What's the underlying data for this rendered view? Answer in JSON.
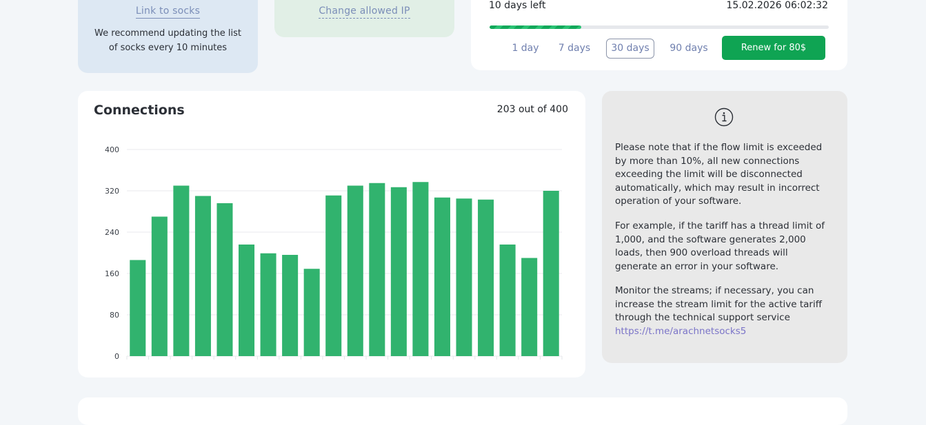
{
  "socks": {
    "link_label": "Link to socks",
    "note": "We recommend updating the list of socks every 10 minutes"
  },
  "ip": {
    "change_label": "Change allowed IP"
  },
  "subscription": {
    "days_left": "10 days left",
    "expires": "15.02.2026 06:02:32",
    "remaining_fraction": 0.27,
    "periods": [
      "1 day",
      "7 days",
      "30 days",
      "90 days"
    ],
    "selected_period": "30 days",
    "renew_label": "Renew for 80$"
  },
  "connections": {
    "title": "Connections",
    "count": "203 out of 400"
  },
  "chart_data": {
    "type": "bar",
    "title": "",
    "xlabel": "",
    "ylabel": "",
    "ylim": [
      0,
      400
    ],
    "yticks": [
      0,
      80,
      160,
      240,
      320,
      400
    ],
    "grid": true,
    "color": "#31b36e",
    "values": [
      186,
      270,
      330,
      310,
      296,
      216,
      199,
      196,
      169,
      311,
      330,
      335,
      327,
      337,
      307,
      305,
      303,
      216,
      190,
      320
    ]
  },
  "info": {
    "paragraph1": "Please note that if the flow limit is exceeded by more than 10%, all new connections exceeding the limit will be disconnected automatically, which may result in incorrect operation of your software.",
    "paragraph2": "For example, if the tariff has a thread limit of 1,000, and the software generates 2,000 loads, then 900 overload threads will generate an error in your software.",
    "paragraph3": "Monitor the streams; if necessary, you can increase the stream limit for the active tariff through the technical support service",
    "support_link": "https://t.me/arachnetsocks5"
  },
  "colors": {
    "accent_green": "#0fa453",
    "link": "#7b8eb8",
    "background": "#f3f6f9"
  }
}
